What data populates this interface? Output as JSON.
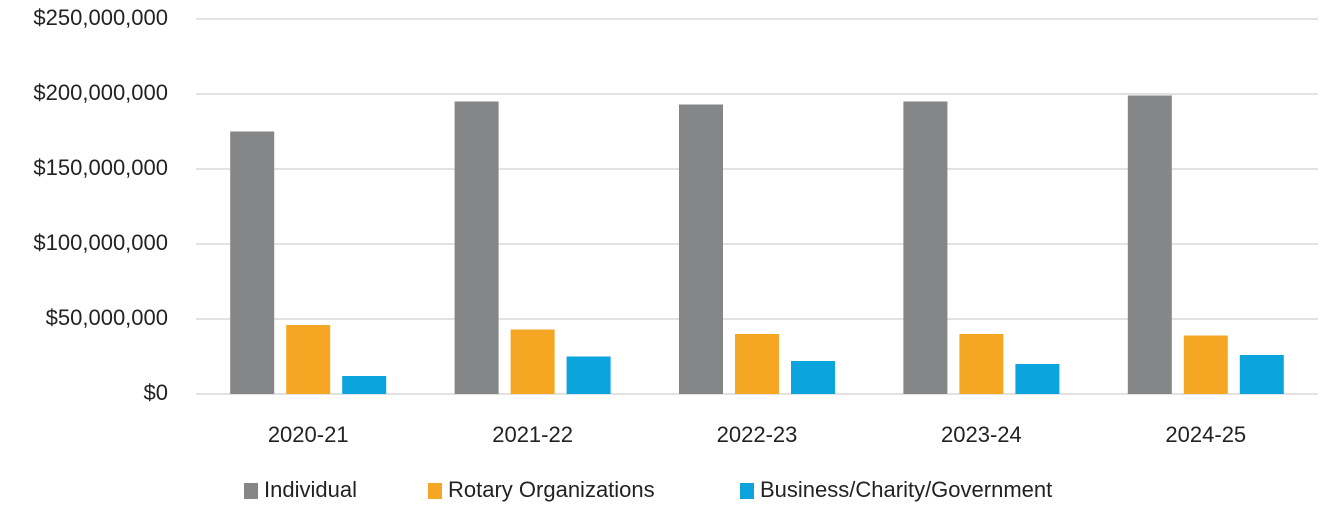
{
  "chart_data": {
    "type": "bar",
    "categories": [
      "2020-21",
      "2021-22",
      "2022-23",
      "2023-24",
      "2024-25"
    ],
    "series": [
      {
        "name": "Individual",
        "color": "#858688",
        "values": [
          175000000,
          195000000,
          193000000,
          195000000,
          199000000
        ]
      },
      {
        "name": "Rotary Organizations",
        "color": "#f5a623",
        "values": [
          46000000,
          43000000,
          40000000,
          40000000,
          39000000
        ]
      },
      {
        "name": "Business/Charity/Government",
        "color": "#0ba4dc",
        "values": [
          12000000,
          25000000,
          22000000,
          20000000,
          26000000
        ]
      }
    ],
    "ylim": [
      0,
      250000000
    ],
    "yticks": [
      {
        "value": 0,
        "label": "$0"
      },
      {
        "value": 50000000,
        "label": "$50,000,000"
      },
      {
        "value": 100000000,
        "label": "$100,000,000"
      },
      {
        "value": 150000000,
        "label": "$150,000,000"
      },
      {
        "value": 200000000,
        "label": "$200,000,000"
      },
      {
        "value": 250000000,
        "label": "$250,000,000"
      }
    ],
    "grid": true,
    "legend": "bottom"
  }
}
